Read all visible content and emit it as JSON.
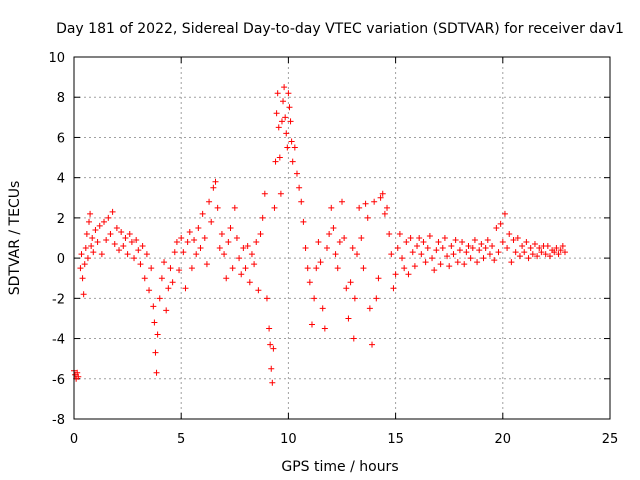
{
  "chart_data": {
    "type": "scatter",
    "title": "Day 181 of 2022, Sidereal Day-to-day VTEC variation (SDTVAR) for receiver dav1",
    "xlabel": "GPS time / hours",
    "ylabel": "SDTVAR / TECUs",
    "xlim": [
      0,
      25
    ],
    "ylim": [
      -8,
      10
    ],
    "xticks": [
      0,
      5,
      10,
      15,
      20,
      25
    ],
    "yticks": [
      -8,
      -6,
      -4,
      -2,
      0,
      2,
      4,
      6,
      8,
      10
    ],
    "grid": true,
    "marker": "+",
    "color": "#ff0000",
    "series": [
      {
        "name": "SDTVAR",
        "points": [
          [
            0.0,
            -5.6
          ],
          [
            0.05,
            -5.8
          ],
          [
            0.1,
            -6.0
          ],
          [
            0.15,
            -5.7
          ],
          [
            0.2,
            -5.9
          ],
          [
            0.3,
            -0.5
          ],
          [
            0.35,
            0.2
          ],
          [
            0.4,
            -1.0
          ],
          [
            0.45,
            -1.8
          ],
          [
            0.5,
            -0.3
          ],
          [
            0.55,
            0.5
          ],
          [
            0.6,
            1.2
          ],
          [
            0.65,
            0.0
          ],
          [
            0.7,
            1.8
          ],
          [
            0.75,
            2.2
          ],
          [
            0.8,
            0.6
          ],
          [
            0.85,
            1.0
          ],
          [
            0.9,
            0.3
          ],
          [
            1.0,
            1.4
          ],
          [
            1.1,
            0.8
          ],
          [
            1.2,
            1.6
          ],
          [
            1.3,
            0.2
          ],
          [
            1.4,
            1.8
          ],
          [
            1.5,
            0.9
          ],
          [
            1.6,
            2.0
          ],
          [
            1.7,
            1.2
          ],
          [
            1.8,
            2.3
          ],
          [
            1.9,
            0.7
          ],
          [
            2.0,
            1.5
          ],
          [
            2.1,
            0.4
          ],
          [
            2.2,
            1.3
          ],
          [
            2.3,
            0.6
          ],
          [
            2.4,
            1.0
          ],
          [
            2.5,
            0.2
          ],
          [
            2.6,
            1.2
          ],
          [
            2.7,
            0.8
          ],
          [
            2.8,
            0.0
          ],
          [
            2.9,
            0.9
          ],
          [
            3.0,
            0.4
          ],
          [
            3.1,
            -0.3
          ],
          [
            3.2,
            0.6
          ],
          [
            3.3,
            -1.0
          ],
          [
            3.4,
            0.2
          ],
          [
            3.5,
            -1.6
          ],
          [
            3.6,
            -0.5
          ],
          [
            3.7,
            -2.4
          ],
          [
            3.75,
            -3.2
          ],
          [
            3.8,
            -4.7
          ],
          [
            3.85,
            -5.7
          ],
          [
            3.9,
            -3.8
          ],
          [
            4.0,
            -2.0
          ],
          [
            4.1,
            -1.0
          ],
          [
            4.2,
            -0.2
          ],
          [
            4.3,
            -2.6
          ],
          [
            4.4,
            -1.5
          ],
          [
            4.5,
            -0.5
          ],
          [
            4.6,
            -1.2
          ],
          [
            4.7,
            0.3
          ],
          [
            4.8,
            0.8
          ],
          [
            4.9,
            -0.6
          ],
          [
            5.0,
            1.0
          ],
          [
            5.1,
            0.3
          ],
          [
            5.2,
            -1.5
          ],
          [
            5.3,
            0.8
          ],
          [
            5.4,
            1.3
          ],
          [
            5.5,
            -0.5
          ],
          [
            5.6,
            0.9
          ],
          [
            5.7,
            0.2
          ],
          [
            5.8,
            1.5
          ],
          [
            5.9,
            0.5
          ],
          [
            6.0,
            2.2
          ],
          [
            6.1,
            1.0
          ],
          [
            6.2,
            -0.3
          ],
          [
            6.3,
            2.8
          ],
          [
            6.4,
            1.8
          ],
          [
            6.5,
            3.5
          ],
          [
            6.6,
            3.8
          ],
          [
            6.7,
            2.5
          ],
          [
            6.8,
            0.5
          ],
          [
            6.9,
            1.2
          ],
          [
            7.0,
            0.2
          ],
          [
            7.1,
            -1.0
          ],
          [
            7.2,
            0.8
          ],
          [
            7.3,
            1.5
          ],
          [
            7.4,
            -0.5
          ],
          [
            7.5,
            2.5
          ],
          [
            7.6,
            1.0
          ],
          [
            7.7,
            0.0
          ],
          [
            7.8,
            -0.8
          ],
          [
            7.9,
            0.5
          ],
          [
            8.0,
            -0.5
          ],
          [
            8.1,
            0.6
          ],
          [
            8.2,
            -1.2
          ],
          [
            8.3,
            0.2
          ],
          [
            8.4,
            -0.3
          ],
          [
            8.5,
            0.8
          ],
          [
            8.6,
            -1.6
          ],
          [
            8.7,
            1.2
          ],
          [
            8.8,
            2.0
          ],
          [
            8.9,
            3.2
          ],
          [
            9.0,
            -2.0
          ],
          [
            9.1,
            -3.5
          ],
          [
            9.15,
            -4.3
          ],
          [
            9.2,
            -5.5
          ],
          [
            9.25,
            -6.2
          ],
          [
            9.3,
            -4.5
          ],
          [
            9.35,
            2.5
          ],
          [
            9.4,
            4.8
          ],
          [
            9.45,
            7.2
          ],
          [
            9.5,
            8.2
          ],
          [
            9.55,
            6.5
          ],
          [
            9.6,
            5.0
          ],
          [
            9.65,
            3.2
          ],
          [
            9.7,
            6.8
          ],
          [
            9.75,
            7.8
          ],
          [
            9.8,
            8.5
          ],
          [
            9.85,
            7.0
          ],
          [
            9.9,
            6.2
          ],
          [
            9.95,
            5.5
          ],
          [
            10.0,
            8.2
          ],
          [
            10.05,
            7.5
          ],
          [
            10.1,
            6.8
          ],
          [
            10.15,
            5.8
          ],
          [
            10.2,
            4.8
          ],
          [
            10.3,
            5.5
          ],
          [
            10.4,
            4.2
          ],
          [
            10.5,
            3.5
          ],
          [
            10.6,
            2.8
          ],
          [
            10.7,
            1.8
          ],
          [
            10.8,
            0.5
          ],
          [
            10.9,
            -0.5
          ],
          [
            11.0,
            -1.2
          ],
          [
            11.1,
            -3.3
          ],
          [
            11.2,
            -2.0
          ],
          [
            11.3,
            -0.5
          ],
          [
            11.4,
            0.8
          ],
          [
            11.5,
            -0.2
          ],
          [
            11.6,
            -2.5
          ],
          [
            11.7,
            -3.5
          ],
          [
            11.8,
            0.5
          ],
          [
            11.9,
            1.2
          ],
          [
            12.0,
            2.5
          ],
          [
            12.1,
            1.5
          ],
          [
            12.2,
            0.2
          ],
          [
            12.3,
            -0.5
          ],
          [
            12.4,
            0.8
          ],
          [
            12.5,
            2.8
          ],
          [
            12.6,
            1.0
          ],
          [
            12.7,
            -1.5
          ],
          [
            12.8,
            -3.0
          ],
          [
            12.9,
            -1.2
          ],
          [
            13.0,
            0.5
          ],
          [
            13.05,
            -4.0
          ],
          [
            13.1,
            -2.0
          ],
          [
            13.2,
            0.2
          ],
          [
            13.3,
            2.5
          ],
          [
            13.4,
            1.0
          ],
          [
            13.5,
            -0.5
          ],
          [
            13.6,
            2.7
          ],
          [
            13.7,
            2.0
          ],
          [
            13.8,
            -2.5
          ],
          [
            13.9,
            -4.3
          ],
          [
            14.0,
            2.8
          ],
          [
            14.1,
            -2.0
          ],
          [
            14.2,
            -1.0
          ],
          [
            14.3,
            3.0
          ],
          [
            14.4,
            3.2
          ],
          [
            14.5,
            2.2
          ],
          [
            14.6,
            2.5
          ],
          [
            14.7,
            1.2
          ],
          [
            14.8,
            0.2
          ],
          [
            14.9,
            -1.5
          ],
          [
            15.0,
            -0.8
          ],
          [
            15.1,
            0.5
          ],
          [
            15.2,
            1.2
          ],
          [
            15.3,
            0.0
          ],
          [
            15.4,
            -0.5
          ],
          [
            15.5,
            0.8
          ],
          [
            15.6,
            -0.8
          ],
          [
            15.7,
            1.0
          ],
          [
            15.8,
            0.3
          ],
          [
            15.9,
            -0.4
          ],
          [
            16.0,
            0.6
          ],
          [
            16.1,
            1.0
          ],
          [
            16.2,
            0.2
          ],
          [
            16.3,
            0.8
          ],
          [
            16.4,
            -0.2
          ],
          [
            16.5,
            0.5
          ],
          [
            16.6,
            1.1
          ],
          [
            16.7,
            0.0
          ],
          [
            16.8,
            -0.6
          ],
          [
            16.9,
            0.4
          ],
          [
            17.0,
            0.8
          ],
          [
            17.1,
            -0.3
          ],
          [
            17.2,
            0.5
          ],
          [
            17.3,
            1.0
          ],
          [
            17.4,
            0.1
          ],
          [
            17.5,
            -0.4
          ],
          [
            17.6,
            0.6
          ],
          [
            17.7,
            0.2
          ],
          [
            17.8,
            0.9
          ],
          [
            17.9,
            -0.2
          ],
          [
            18.0,
            0.4
          ],
          [
            18.1,
            0.8
          ],
          [
            18.2,
            -0.3
          ],
          [
            18.3,
            0.3
          ],
          [
            18.4,
            0.6
          ],
          [
            18.5,
            0.0
          ],
          [
            18.6,
            0.5
          ],
          [
            18.7,
            0.9
          ],
          [
            18.8,
            -0.2
          ],
          [
            18.9,
            0.4
          ],
          [
            19.0,
            0.7
          ],
          [
            19.1,
            0.0
          ],
          [
            19.2,
            0.5
          ],
          [
            19.3,
            0.9
          ],
          [
            19.4,
            0.2
          ],
          [
            19.5,
            0.6
          ],
          [
            19.6,
            -0.1
          ],
          [
            19.7,
            1.5
          ],
          [
            19.8,
            0.3
          ],
          [
            19.9,
            1.7
          ],
          [
            20.0,
            0.8
          ],
          [
            20.1,
            2.2
          ],
          [
            20.2,
            0.5
          ],
          [
            20.3,
            1.2
          ],
          [
            20.4,
            -0.2
          ],
          [
            20.5,
            0.9
          ],
          [
            20.6,
            0.3
          ],
          [
            20.7,
            1.0
          ],
          [
            20.8,
            0.1
          ],
          [
            20.9,
            0.6
          ],
          [
            21.0,
            0.3
          ],
          [
            21.1,
            0.8
          ],
          [
            21.2,
            0.0
          ],
          [
            21.3,
            0.5
          ],
          [
            21.4,
            0.2
          ],
          [
            21.5,
            0.7
          ],
          [
            21.6,
            0.1
          ],
          [
            21.7,
            0.5
          ],
          [
            21.8,
            0.3
          ],
          [
            21.9,
            0.6
          ],
          [
            22.0,
            0.2
          ],
          [
            22.1,
            0.6
          ],
          [
            22.2,
            0.1
          ],
          [
            22.3,
            0.4
          ],
          [
            22.4,
            0.3
          ],
          [
            22.5,
            0.5
          ],
          [
            22.6,
            0.2
          ],
          [
            22.7,
            0.4
          ],
          [
            22.8,
            0.6
          ],
          [
            22.9,
            0.3
          ]
        ]
      }
    ]
  }
}
